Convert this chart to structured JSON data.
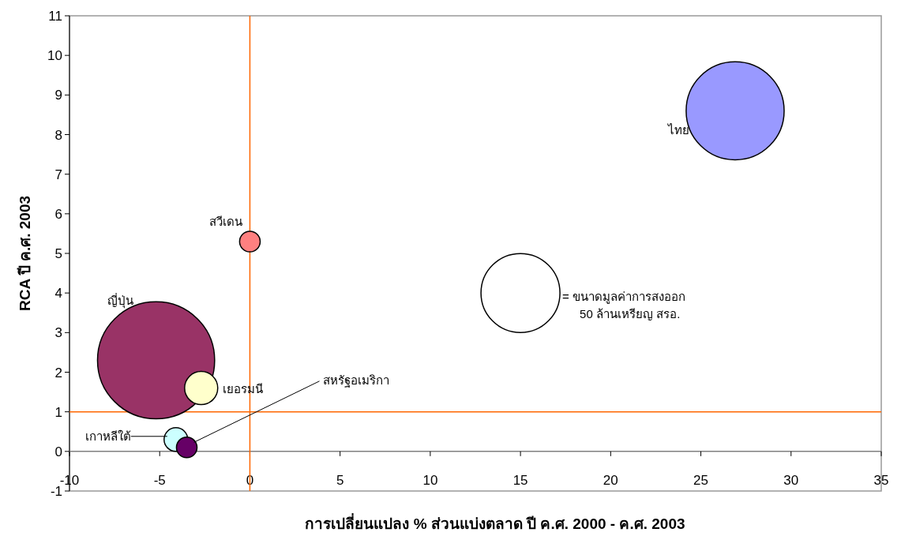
{
  "chart_data": {
    "type": "bubble",
    "xlabel": "การเปลี่ยนแปลง % ส่วนแบ่งตลาด ปี ค.ศ. 2000 - ค.ศ. 2003",
    "ylabel": "RCA ปี ค.ศ. 2003",
    "xlim": [
      -10,
      35
    ],
    "xticks": [
      -10,
      -5,
      0,
      5,
      10,
      15,
      20,
      25,
      30,
      35
    ],
    "ylim": [
      -1,
      11
    ],
    "yticks": [
      -1,
      0,
      1,
      2,
      3,
      4,
      5,
      6,
      7,
      8,
      9,
      10,
      11
    ],
    "grid": false,
    "size_legend": [
      50
    ],
    "annotations": [
      "= ขนาดมูลค่าการสงออก",
      "ล้านเหรียญ สรอ."
    ],
    "ref_lines": [
      {
        "axis": "x",
        "value": 0,
        "color": "#ff6600"
      },
      {
        "axis": "y",
        "value": 1,
        "color": "#ff6600"
      }
    ],
    "series": [
      {
        "name": "ไทย",
        "color": "#9999ff",
        "x": [
          26.9
        ],
        "values": [
          8.6
        ],
        "sizes": [
          77
        ]
      },
      {
        "name": "สวีเดน",
        "color": "#ff8080",
        "x": [
          0
        ],
        "values": [
          5.3
        ],
        "sizes": [
          3.4
        ]
      },
      {
        "name": "ญี่ปุ่น",
        "color": "#993366",
        "x": [
          -5.2
        ],
        "values": [
          2.3
        ],
        "sizes": [
          110
        ]
      },
      {
        "name": "เยอรมนี",
        "color": "#ffffcc",
        "x": [
          -2.7
        ],
        "values": [
          1.6
        ],
        "sizes": [
          8.8
        ]
      },
      {
        "name": "เกาหลีใต้",
        "color": "#ccffff",
        "x": [
          -4.1
        ],
        "values": [
          0.3
        ],
        "sizes": [
          4.5
        ]
      },
      {
        "name": "สหรัฐอเมริกา",
        "color": "#660066",
        "x": [
          -3.5
        ],
        "values": [
          0.1
        ],
        "sizes": [
          3.4
        ]
      }
    ]
  }
}
